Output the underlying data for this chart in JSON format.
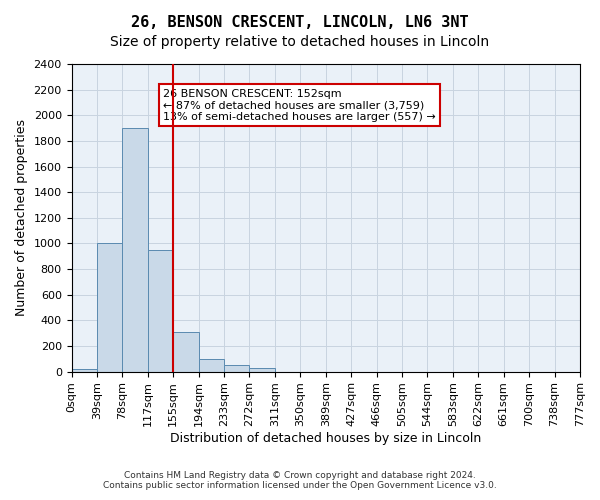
{
  "title": "26, BENSON CRESCENT, LINCOLN, LN6 3NT",
  "subtitle": "Size of property relative to detached houses in Lincoln",
  "xlabel": "Distribution of detached houses by size in Lincoln",
  "ylabel": "Number of detached properties",
  "bin_labels": [
    "0sqm",
    "39sqm",
    "78sqm",
    "117sqm",
    "155sqm",
    "194sqm",
    "233sqm",
    "272sqm",
    "311sqm",
    "350sqm",
    "389sqm",
    "427sqm",
    "466sqm",
    "505sqm",
    "544sqm",
    "583sqm",
    "622sqm",
    "661sqm",
    "700sqm",
    "738sqm",
    "777sqm"
  ],
  "bar_heights": [
    20,
    1000,
    1900,
    950,
    310,
    100,
    50,
    30,
    0,
    0,
    0,
    0,
    0,
    0,
    0,
    0,
    0,
    0,
    0,
    0
  ],
  "bar_color": "#c9d9e8",
  "bar_edge_color": "#5a8ab0",
  "vline_x": 4,
  "vline_color": "#cc0000",
  "ylim": [
    0,
    2400
  ],
  "yticks": [
    0,
    200,
    400,
    600,
    800,
    1000,
    1200,
    1400,
    1600,
    1800,
    2000,
    2200,
    2400
  ],
  "annotation_text": "26 BENSON CRESCENT: 152sqm\n← 87% of detached houses are smaller (3,759)\n13% of semi-detached houses are larger (557) →",
  "annotation_box_color": "#ffffff",
  "annotation_box_edge": "#cc0000",
  "footer_line1": "Contains HM Land Registry data © Crown copyright and database right 2024.",
  "footer_line2": "Contains public sector information licensed under the Open Government Licence v3.0.",
  "background_color": "#ffffff",
  "grid_color": "#c8d4e0",
  "title_fontsize": 11,
  "subtitle_fontsize": 10,
  "axis_fontsize": 9,
  "tick_fontsize": 8
}
